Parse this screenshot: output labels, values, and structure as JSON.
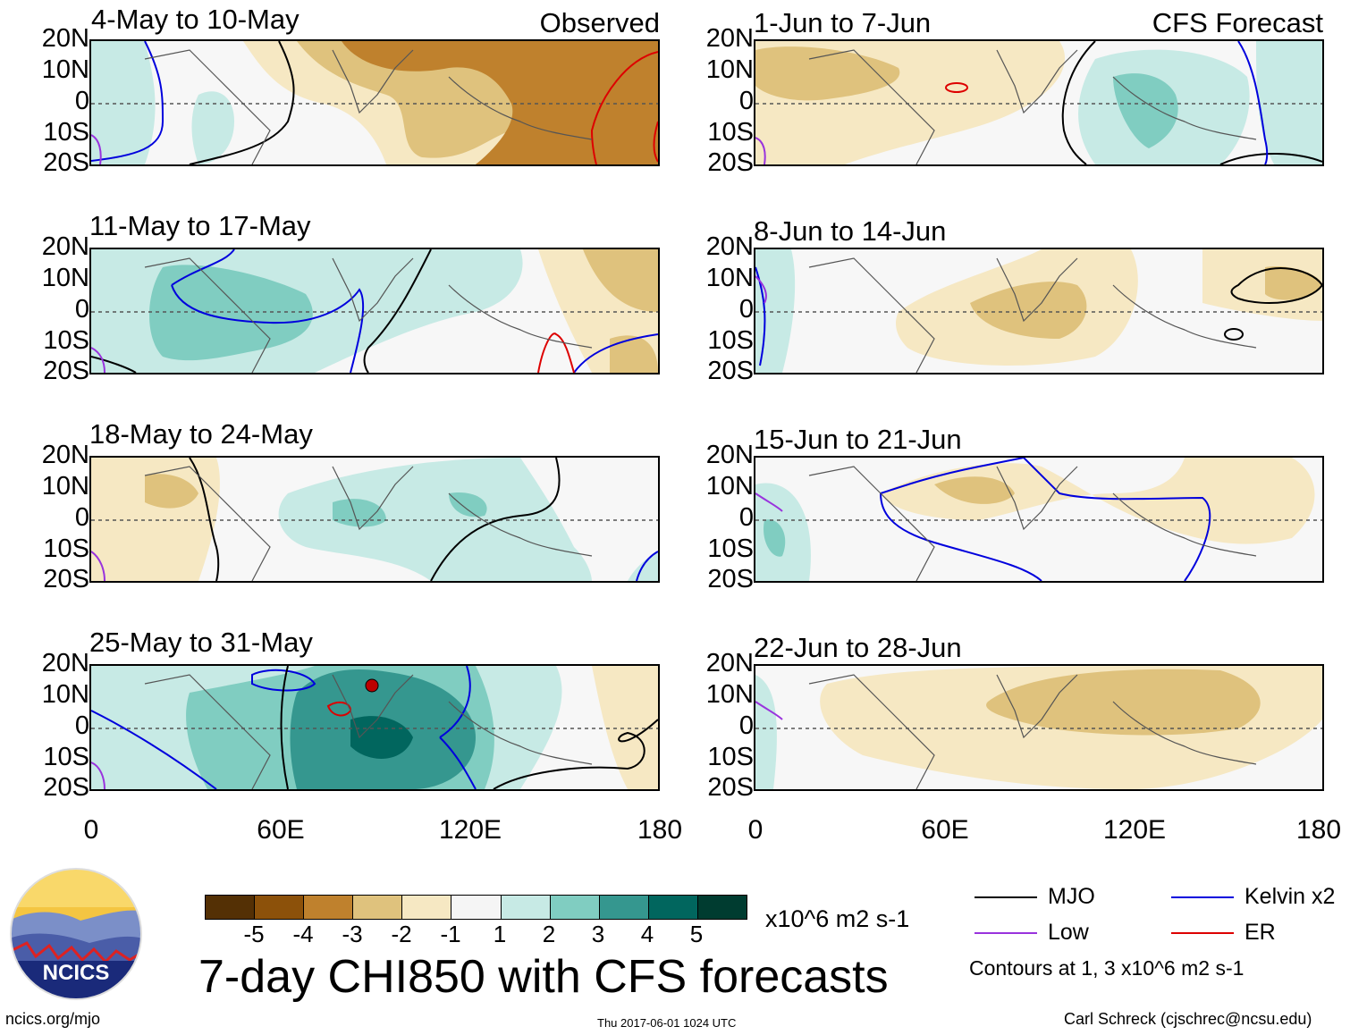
{
  "observed_label": "Observed",
  "forecast_label": "CFS Forecast",
  "lat_labels": [
    "20N",
    "10N",
    "0",
    "10S",
    "20S"
  ],
  "lon_labels": [
    "0",
    "60E",
    "120E",
    "180"
  ],
  "panels": {
    "left": [
      {
        "title": "4-May to 10-May"
      },
      {
        "title": "11-May to 17-May"
      },
      {
        "title": "18-May to 24-May"
      },
      {
        "title": "25-May to 31-May"
      }
    ],
    "right": [
      {
        "title": "1-Jun to 7-Jun"
      },
      {
        "title": "8-Jun to 14-Jun"
      },
      {
        "title": "15-Jun to 21-Jun"
      },
      {
        "title": "22-Jun to 28-Jun"
      }
    ]
  },
  "colorbar": {
    "labels": [
      "-5",
      "-4",
      "-3",
      "-2",
      "-1",
      "1",
      "2",
      "3",
      "4",
      "5"
    ],
    "colors": [
      "#543005",
      "#8c510a",
      "#bf812d",
      "#dfc27d",
      "#f6e8c3",
      "#f5f5f5",
      "#c7eae5",
      "#80cdc1",
      "#35978f",
      "#01665e",
      "#003c30"
    ],
    "units": "x10^6 m2 s-1"
  },
  "main_title": "7-day CHI850 with CFS forecasts",
  "legend": {
    "items": [
      {
        "label": "MJO",
        "color": "#000000"
      },
      {
        "label": "Kelvin x2",
        "color": "#0000dd"
      },
      {
        "label": "Low",
        "color": "#9933dd"
      },
      {
        "label": "ER",
        "color": "#dd0000"
      }
    ],
    "contours_note": "Contours at 1, 3 x10^6 m2 s-1"
  },
  "logo_text": "NCICS",
  "footer": {
    "url": "ncics.org/mjo",
    "timestamp": "Thu 2017-06-01 1024 UTC",
    "author": "Carl Schreck (cjschrec@ncsu.edu)"
  },
  "colors": {
    "brown_light": "#f6e8c3",
    "brown_mid": "#dfc27d",
    "brown_dark": "#bf812d",
    "teal_light": "#c7eae5",
    "teal_mid": "#80cdc1",
    "teal_dark": "#35978f",
    "teal_darker": "#01665e"
  }
}
